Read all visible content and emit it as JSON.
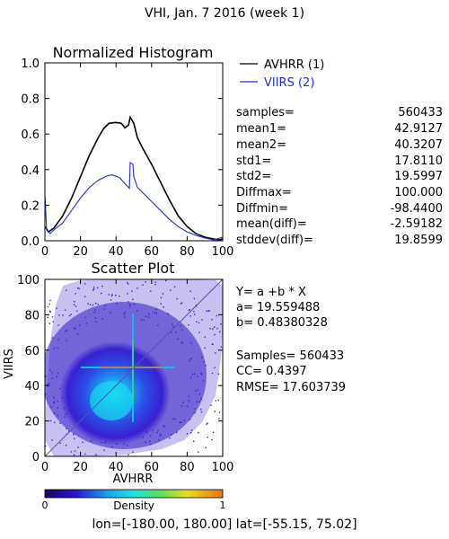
{
  "page_title": "VHI,  Jan. 7 2016 (week 1)",
  "histogram": {
    "title": "Normalized Histogram",
    "legend": [
      {
        "label": "AVHRR (1)",
        "color": "#000000"
      },
      {
        "label": "VIIRS (2)",
        "color": "#1f2fd0"
      }
    ],
    "stats": [
      {
        "label": "samples=",
        "value": "560433"
      },
      {
        "label": "mean1=",
        "value": "42.9127"
      },
      {
        "label": "mean2=",
        "value": "40.3207"
      },
      {
        "label": "std1=",
        "value": "17.8110"
      },
      {
        "label": "std2=",
        "value": "19.5997"
      },
      {
        "label": "Diffmax=",
        "value": "100.000"
      },
      {
        "label": "Diffmin=",
        "value": "-98.4400"
      },
      {
        "label": "mean(diff)=",
        "value": "-2.59182"
      },
      {
        "label": "stddev(diff)=",
        "value": "19.8599"
      }
    ]
  },
  "scatter": {
    "title": "Scatter Plot",
    "fit_lines": [
      "Y= a +b * X",
      "a= 19.559488",
      "b= 0.48380328"
    ],
    "stat_lines": [
      "Samples= 560433",
      "CC=  0.4397",
      "RMSE= 17.603739"
    ]
  },
  "colorbar": {
    "label": "Density",
    "min_label": "0",
    "max_label": "1"
  },
  "footer": "lon=[-180.00, 180.00] lat=[-55.15, 75.02]",
  "chart_data": [
    {
      "type": "line",
      "title": "Normalized Histogram",
      "xlabel": "",
      "ylabel": "",
      "xlim": [
        0,
        100
      ],
      "ylim": [
        0,
        1
      ],
      "x_ticks": [
        "0",
        "20",
        "40",
        "60",
        "80",
        "100"
      ],
      "y_ticks": [
        "0.0",
        "0.2",
        "0.4",
        "0.6",
        "0.8",
        "1.0"
      ],
      "series": [
        {
          "name": "AVHRR (1)",
          "color": "#000000",
          "points": [
            [
              0,
              0.08
            ],
            [
              2,
              0.05
            ],
            [
              5,
              0.07
            ],
            [
              10,
              0.14
            ],
            [
              15,
              0.24
            ],
            [
              20,
              0.36
            ],
            [
              25,
              0.48
            ],
            [
              30,
              0.58
            ],
            [
              33,
              0.63
            ],
            [
              36,
              0.66
            ],
            [
              40,
              0.665
            ],
            [
              43,
              0.66
            ],
            [
              45,
              0.635
            ],
            [
              47,
              0.65
            ],
            [
              48,
              0.695
            ],
            [
              50,
              0.66
            ],
            [
              52,
              0.58
            ],
            [
              55,
              0.52
            ],
            [
              60,
              0.43
            ],
            [
              65,
              0.33
            ],
            [
              70,
              0.23
            ],
            [
              75,
              0.14
            ],
            [
              80,
              0.08
            ],
            [
              85,
              0.04
            ],
            [
              90,
              0.02
            ],
            [
              95,
              0.01
            ],
            [
              98,
              0.005
            ],
            [
              100,
              0.01
            ]
          ]
        },
        {
          "name": "VIIRS (2)",
          "color": "#1f2fd0",
          "points": [
            [
              0,
              0.26
            ],
            [
              1,
              0.06
            ],
            [
              3,
              0.04
            ],
            [
              5,
              0.06
            ],
            [
              10,
              0.1
            ],
            [
              15,
              0.17
            ],
            [
              20,
              0.24
            ],
            [
              25,
              0.3
            ],
            [
              30,
              0.34
            ],
            [
              35,
              0.365
            ],
            [
              38,
              0.37
            ],
            [
              42,
              0.355
            ],
            [
              46,
              0.31
            ],
            [
              47.5,
              0.295
            ],
            [
              48,
              0.44
            ],
            [
              49.5,
              0.43
            ],
            [
              50,
              0.36
            ],
            [
              52,
              0.3
            ],
            [
              55,
              0.27
            ],
            [
              60,
              0.22
            ],
            [
              65,
              0.17
            ],
            [
              70,
              0.12
            ],
            [
              75,
              0.08
            ],
            [
              80,
              0.05
            ],
            [
              85,
              0.03
            ],
            [
              90,
              0.015
            ],
            [
              95,
              0.005
            ],
            [
              100,
              0.02
            ]
          ]
        }
      ]
    },
    {
      "type": "scatter",
      "title": "Scatter Plot",
      "xlabel": "AVHRR",
      "ylabel": "VIIRS",
      "xlim": [
        0,
        100
      ],
      "ylim": [
        0,
        100
      ],
      "x_ticks": [
        "0",
        "20",
        "40",
        "60",
        "80",
        "100"
      ],
      "y_ticks": [
        "0",
        "20",
        "40",
        "60",
        "80",
        "100"
      ],
      "fit": {
        "a": 19.559488,
        "b": 0.48380328
      },
      "samples": 560433,
      "cc": 0.4397,
      "rmse": 17.603739
    }
  ]
}
